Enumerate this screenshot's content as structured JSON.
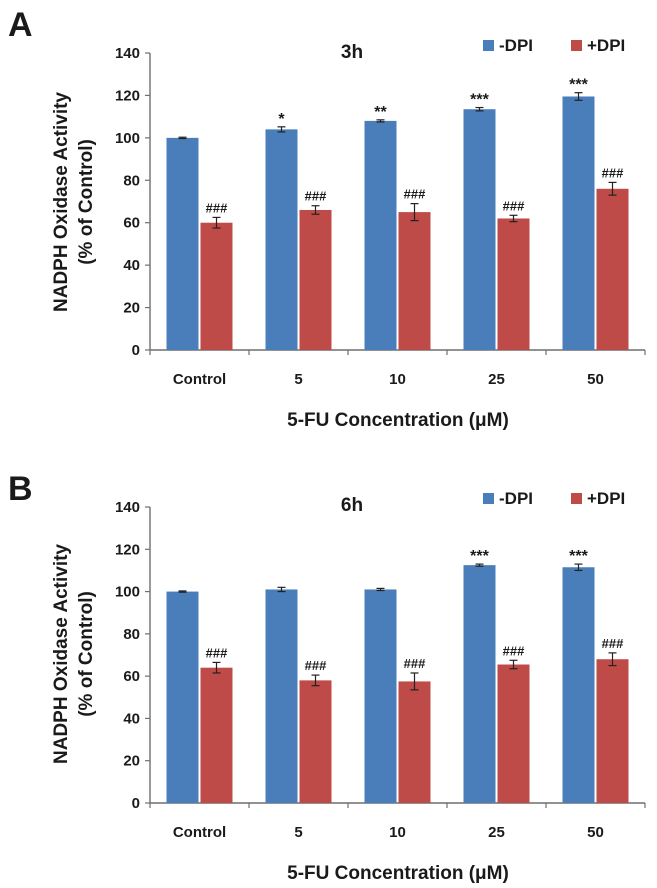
{
  "chart_data": [
    {
      "type": "bar",
      "panel_label": "A",
      "title": "3h",
      "xlabel": "5-FU Concentration (μM)",
      "ylabel": [
        "NADPH Oxidase Activity",
        "(% of Control)"
      ],
      "ylim": [
        0,
        140
      ],
      "yticks": [
        0,
        20,
        40,
        60,
        80,
        100,
        120,
        140
      ],
      "categories": [
        "Control",
        "5",
        "10",
        "25",
        "50"
      ],
      "legend_position": "top-right",
      "series": [
        {
          "name": "-DPI",
          "color": "#4a7ebb",
          "values": [
            100,
            104,
            108,
            113.5,
            119.5
          ],
          "errors": [
            0.3,
            1.2,
            0.5,
            0.8,
            1.8
          ],
          "annotations": [
            "",
            "*",
            "**",
            "***",
            "***"
          ]
        },
        {
          "name": "+DPI",
          "color": "#be4b48",
          "values": [
            60,
            66,
            65,
            62,
            76
          ],
          "errors": [
            2.5,
            2,
            4,
            1.5,
            3
          ],
          "annotations": [
            "###",
            "###",
            "###",
            "###",
            "###"
          ]
        }
      ]
    },
    {
      "type": "bar",
      "panel_label": "B",
      "title": "6h",
      "xlabel": "5-FU Concentration (μM)",
      "ylabel": [
        "NADPH Oxidase Activity",
        "(% of Control)"
      ],
      "ylim": [
        0,
        140
      ],
      "yticks": [
        0,
        20,
        40,
        60,
        80,
        100,
        120,
        140
      ],
      "categories": [
        "Control",
        "5",
        "10",
        "25",
        "50"
      ],
      "legend_position": "top-right",
      "series": [
        {
          "name": "-DPI",
          "color": "#4a7ebb",
          "values": [
            100,
            101,
            101,
            112.5,
            111.5
          ],
          "errors": [
            0.3,
            1,
            0.5,
            0.5,
            1.5
          ],
          "annotations": [
            "",
            "",
            "",
            "***",
            "***"
          ]
        },
        {
          "name": "+DPI",
          "color": "#be4b48",
          "values": [
            64,
            58,
            57.5,
            65.5,
            68
          ],
          "errors": [
            2.5,
            2.5,
            4,
            2,
            3
          ],
          "annotations": [
            "###",
            "###",
            "###",
            "###",
            "###"
          ]
        }
      ]
    }
  ]
}
